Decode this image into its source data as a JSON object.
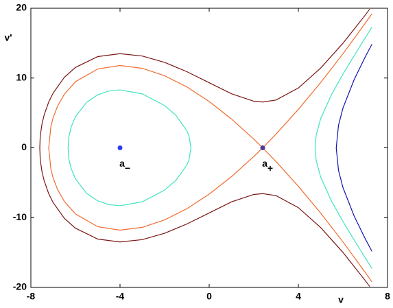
{
  "chart_data": {
    "type": "line",
    "xlabel": "v",
    "ylabel": "v'",
    "xlim": [
      -8,
      8
    ],
    "xticks": [
      -8,
      -4,
      0,
      4,
      8
    ],
    "ylim": [
      -20,
      20
    ],
    "yticks": [
      -20,
      -10,
      0,
      10,
      20
    ],
    "series": [
      {
        "color": "#7a1414",
        "x": [
          -7.6,
          -7.58,
          -7.5,
          -7.4,
          -7.2,
          -7,
          -6.5,
          -6,
          -5,
          -4,
          -3,
          -2,
          -1,
          0,
          1,
          2,
          2.4,
          3,
          4,
          5,
          6,
          7,
          7.2,
          null,
          -7.6,
          -7.58,
          -7.5,
          -7.4,
          -7.2,
          -7,
          -6.5,
          -6,
          -5,
          -4,
          -3,
          -2,
          -1,
          0,
          1,
          2,
          2.4,
          3,
          4,
          5,
          6,
          7,
          7.2
        ],
        "values": [
          0,
          1.7,
          3.44,
          4.75,
          6.56,
          7.85,
          10.09,
          11.52,
          13.07,
          13.49,
          13.15,
          12.24,
          10.91,
          9.33,
          7.75,
          6.68,
          6.56,
          6.85,
          8.57,
          11.42,
          14.98,
          19.01,
          19.87,
          null,
          0,
          -1.7,
          -3.44,
          -4.75,
          -6.56,
          -7.85,
          -10.09,
          -11.52,
          -13.07,
          -13.49,
          -13.15,
          -12.24,
          -10.91,
          -9.33,
          -7.75,
          -6.68,
          -6.56,
          -6.85,
          -8.57,
          -11.42,
          -14.98,
          -19.01,
          -19.87
        ]
      },
      {
        "color": "#f26a2e",
        "x": [
          -7.2,
          -7.1,
          -7,
          -6.8,
          -6.5,
          -6,
          -5,
          -4,
          -3,
          -2,
          -1,
          0,
          1,
          2,
          2.4,
          3,
          4,
          5,
          6,
          7,
          7.3,
          null,
          -7.2,
          -7.1,
          -7,
          -6.8,
          -6.5,
          -6,
          -5,
          -4,
          -3,
          -2,
          -1,
          0,
          1,
          2,
          2.4,
          3,
          4,
          5,
          6,
          7,
          7.3
        ],
        "values": [
          0,
          3.09,
          4.33,
          5.99,
          7.67,
          9.47,
          11.3,
          11.79,
          11.39,
          10.33,
          8.72,
          6.63,
          4.13,
          1.25,
          0,
          -1.97,
          -5.51,
          -9.35,
          -13.47,
          -17.85,
          -19.21,
          null,
          0,
          -3.09,
          -4.33,
          -5.99,
          -7.67,
          -9.47,
          -11.3,
          -11.79,
          -11.39,
          -10.33,
          -8.72,
          -6.63,
          -4.13,
          -1.25,
          0,
          1.97,
          5.51,
          9.35,
          13.47,
          17.85,
          19.21
        ]
      },
      {
        "color": "#3fe3c0",
        "x": [
          -6.33,
          -6.3,
          -6.2,
          -6,
          -5.5,
          -5,
          -4.5,
          -4,
          -3,
          -2,
          -1.5,
          -1,
          -0.9,
          -0.82,
          -0.9,
          -1,
          -1.5,
          -2,
          -3,
          -4,
          -4.5,
          -5,
          -5.5,
          -6,
          -6.2,
          -6.3,
          -6.33,
          null,
          7.3,
          7,
          6.5,
          6,
          5.5,
          5,
          4.8,
          4.75,
          4.8,
          5,
          5.5,
          6,
          6.5,
          7,
          7.3
        ],
        "values": [
          0,
          1.48,
          2.9,
          4.45,
          6.52,
          7.6,
          8.14,
          8.3,
          7.73,
          6.06,
          4.68,
          2.45,
          1.64,
          0,
          -1.64,
          -2.45,
          -4.68,
          -6.06,
          -7.73,
          -8.3,
          -8.14,
          -7.6,
          -6.52,
          -4.45,
          -2.9,
          -1.48,
          0,
          null,
          17.29,
          15.76,
          13.19,
          10.55,
          7.71,
          4.17,
          1.82,
          0,
          -1.82,
          -4.17,
          -7.71,
          -10.55,
          -13.19,
          -15.76,
          -17.29
        ]
      },
      {
        "color": "#1010b0",
        "x": [
          7.3,
          7,
          6.5,
          6,
          5.8,
          5.7,
          5.8,
          6,
          6.5,
          7,
          7.3
        ],
        "values": [
          14.83,
          13.02,
          9.75,
          5.68,
          3.21,
          0,
          -3.21,
          -5.68,
          -9.75,
          -13.02,
          -14.83
        ]
      }
    ],
    "points": [
      {
        "label": "a",
        "subscript": "−",
        "x": -4,
        "y": 0,
        "color": "#2a3cf5"
      },
      {
        "label": "a",
        "subscript": "+",
        "x": 2.4,
        "y": 0,
        "color": "#4a3a9a"
      }
    ]
  }
}
